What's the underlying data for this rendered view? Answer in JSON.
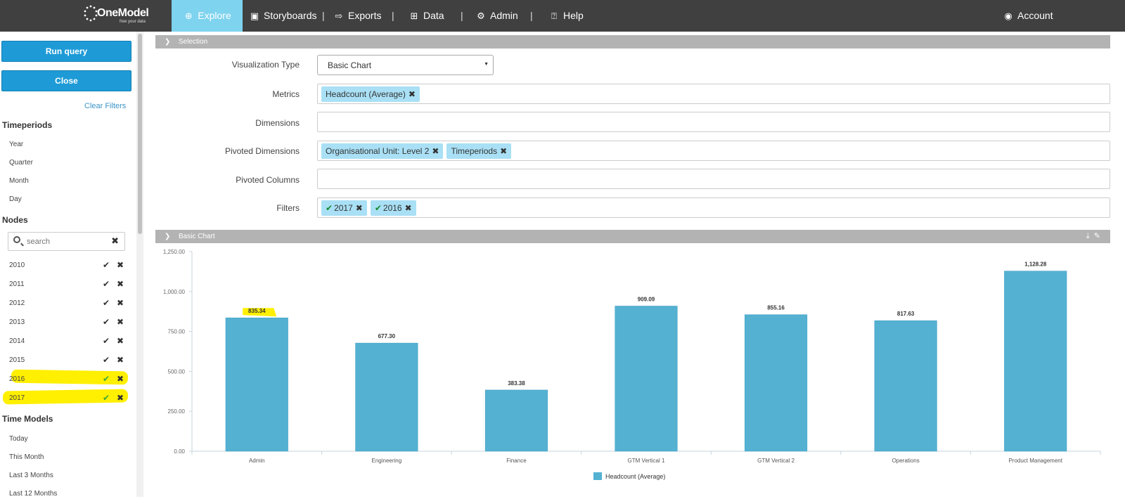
{
  "nav": {
    "logo_text": "OneModel",
    "logo_tagline": "free your data",
    "items": [
      {
        "label": "Explore"
      },
      {
        "label": "Storyboards"
      },
      {
        "label": "Exports"
      },
      {
        "label": "Data"
      },
      {
        "label": "Admin"
      },
      {
        "label": "Help"
      }
    ],
    "account": "Account",
    "active_color": "#7ed3ef"
  },
  "sidebar": {
    "run_query": "Run query",
    "close": "Close",
    "clear_filters": "Clear Filters",
    "timeperiods_title": "Timeperiods",
    "timeperiods": [
      "Year",
      "Quarter",
      "Month",
      "Day"
    ],
    "nodes_title": "Nodes",
    "search_placeholder": "search",
    "nodes": [
      {
        "label": "2010",
        "selected": false
      },
      {
        "label": "2011",
        "selected": false
      },
      {
        "label": "2012",
        "selected": false
      },
      {
        "label": "2013",
        "selected": false
      },
      {
        "label": "2014",
        "selected": false
      },
      {
        "label": "2015",
        "selected": false
      },
      {
        "label": "2016",
        "selected": true
      },
      {
        "label": "2017",
        "selected": true
      }
    ],
    "time_models_title": "Time Models",
    "time_models": [
      "Today",
      "This Month",
      "Last 3 Months",
      "Last 12 Months"
    ]
  },
  "selection": {
    "title": "Selection",
    "visualization_type_label": "Visualization Type",
    "visualization_type_value": "Basic Chart",
    "metrics_label": "Metrics",
    "metrics": [
      "Headcount (Average)"
    ],
    "dimensions_label": "Dimensions",
    "pivoted_dimensions_label": "Pivoted Dimensions",
    "pivoted_dimensions": [
      "Organisational Unit: Level 2",
      "Timeperiods"
    ],
    "pivoted_columns_label": "Pivoted Columns",
    "filters_label": "Filters",
    "filters": [
      "2017",
      "2016"
    ]
  },
  "chart_panel": {
    "title": "Basic Chart"
  },
  "chart_data": {
    "type": "bar",
    "categories": [
      "Admin",
      "Engineering",
      "Finance",
      "GTM Vertical 1",
      "GTM Vertical 2",
      "Operations",
      "Product Management"
    ],
    "series": [
      {
        "name": "Headcount (Average)",
        "values": [
          835.34,
          677.3,
          383.38,
          909.09,
          855.16,
          817.63,
          1128.28
        ],
        "color": "#54b1d2"
      }
    ],
    "data_labels": [
      "835.34",
      "677.30",
      "383.38",
      "909.09",
      "855.16",
      "817.63",
      "1,128.28"
    ],
    "yticks": [
      "0.00",
      "250.00",
      "500.00",
      "750.00",
      "1,000.00",
      "1,250.00"
    ],
    "ylim": [
      0,
      1250
    ],
    "legend": "bottom-center",
    "grid": false
  }
}
